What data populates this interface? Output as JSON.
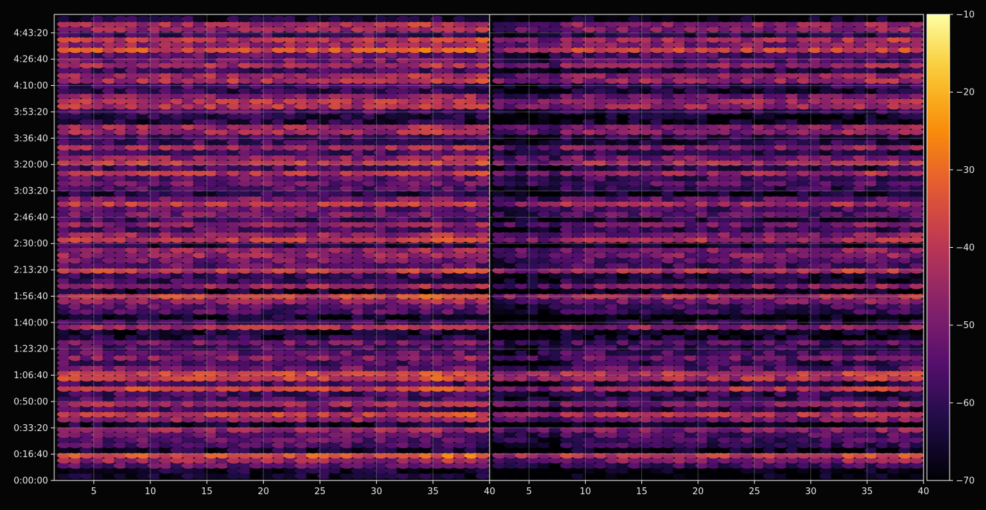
{
  "chart_data": [
    {
      "type": "heatmap",
      "panel": "left",
      "title": "",
      "xlabel": "",
      "ylabel": "",
      "xlim": [
        1.5,
        40
      ],
      "x_ticks": [
        "5",
        "10",
        "15",
        "20",
        "25",
        "30",
        "35",
        "40"
      ],
      "x_tick_values": [
        5,
        10,
        15,
        20,
        25,
        30,
        35,
        40
      ],
      "ylim": [
        0,
        17700
      ],
      "y_ticks": [
        "0:00:00",
        "0:16:40",
        "0:33:20",
        "0:50:00",
        "1:06:40",
        "1:23:20",
        "1:40:00",
        "1:56:40",
        "2:13:20",
        "2:30:00",
        "2:46:40",
        "3:03:20",
        "3:20:00",
        "3:36:40",
        "3:53:20",
        "4:10:00",
        "4:26:40",
        "4:43:20"
      ],
      "y_tick_values": [
        0,
        1000,
        2000,
        3000,
        4000,
        5000,
        6000,
        7000,
        8000,
        9000,
        10000,
        11000,
        12000,
        13000,
        14000,
        15000,
        16000,
        17000
      ],
      "grid": true,
      "x_bins": 38,
      "y_bins": 90,
      "value_range": [
        -70,
        -10
      ]
    },
    {
      "type": "heatmap",
      "panel": "right",
      "title": "",
      "xlabel": "",
      "ylabel": "",
      "xlim": [
        1.5,
        40
      ],
      "x_ticks": [
        "5",
        "10",
        "15",
        "20",
        "25",
        "30",
        "35",
        "40"
      ],
      "x_tick_values": [
        5,
        10,
        15,
        20,
        25,
        30,
        35,
        40
      ],
      "ylim": [
        0,
        17700
      ],
      "grid": true,
      "x_bins": 38,
      "y_bins": 90,
      "value_range": [
        -70,
        -10
      ]
    }
  ],
  "colorbar": {
    "colormap": "inferno",
    "min": -70,
    "max": -10,
    "ticks": [
      "−10",
      "−20",
      "−30",
      "−40",
      "−50",
      "−60",
      "−70"
    ],
    "tick_values": [
      -10,
      -20,
      -30,
      -40,
      -50,
      -60,
      -70
    ]
  },
  "colors": {
    "background": "#050505",
    "axis": "#ffffff",
    "grid": "#9a9a9a",
    "text": "#e6e6e6"
  }
}
